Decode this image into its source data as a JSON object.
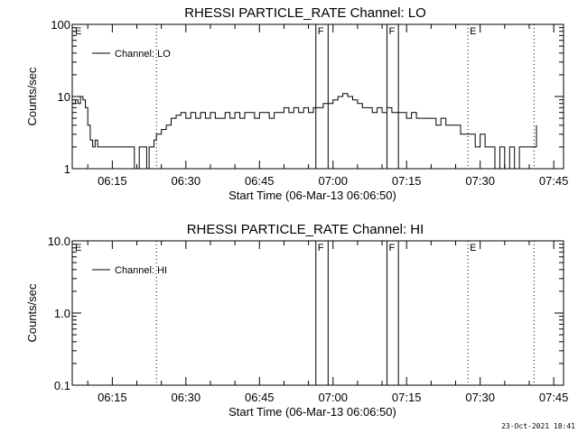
{
  "footer": "23-Oct-2021 18:41",
  "chart_data": [
    {
      "type": "line",
      "title": "RHESSI PARTICLE_RATE Channel: LO",
      "xlabel": "Start Time (06-Mar-13 06:06:50)",
      "ylabel": "Counts/sec",
      "xscale": "time",
      "xlim": [
        "06:06:50",
        "07:47:00"
      ],
      "ylim": [
        1,
        100
      ],
      "yscale": "log",
      "x_ticks": [
        "06:15",
        "06:30",
        "06:45",
        "07:00",
        "07:15",
        "07:30",
        "07:45"
      ],
      "y_ticks": [
        "1",
        "10",
        "100"
      ],
      "legend": {
        "label": "Channel: LO",
        "position": "top-left"
      },
      "markers": [
        {
          "label": "E",
          "time": "06:06:50",
          "style": "dotted"
        },
        {
          "label": "",
          "time": "06:24:00",
          "style": "dotted"
        },
        {
          "label": "F",
          "time": "06:56:30",
          "style": "solid"
        },
        {
          "label": "",
          "time": "06:59:00",
          "style": "solid"
        },
        {
          "label": "F",
          "time": "07:11:00",
          "style": "solid"
        },
        {
          "label": "",
          "time": "07:13:20",
          "style": "solid"
        },
        {
          "label": "E",
          "time": "07:27:30",
          "style": "dotted"
        },
        {
          "label": "",
          "time": "07:49:40",
          "style": "dotted"
        }
      ],
      "series": [
        {
          "name": "Channel: LO",
          "points": [
            [
              "06:06:50",
              8
            ],
            [
              "06:07:30",
              9
            ],
            [
              "06:08:00",
              8
            ],
            [
              "06:08:30",
              10
            ],
            [
              "06:09:00",
              9
            ],
            [
              "06:09:30",
              7
            ],
            [
              "06:10:00",
              4
            ],
            [
              "06:10:30",
              2.5
            ],
            [
              "06:11:00",
              2
            ],
            [
              "06:11:30",
              2.5
            ],
            [
              "06:12:00",
              2
            ],
            [
              "06:13:00",
              2
            ],
            [
              "06:14:00",
              2
            ],
            [
              "06:15:00",
              2
            ],
            [
              "06:16:00",
              2
            ],
            [
              "06:17:00",
              2
            ],
            [
              "06:18:00",
              2
            ],
            [
              "06:19:00",
              2
            ],
            [
              "06:19:30",
              1
            ],
            [
              "06:20:00",
              1
            ],
            [
              "06:20:30",
              2
            ],
            [
              "06:21:00",
              2
            ],
            [
              "06:21:30",
              2
            ],
            [
              "06:22:00",
              1
            ],
            [
              "06:22:30",
              2
            ],
            [
              "06:23:00",
              2
            ],
            [
              "06:23:30",
              2.5
            ],
            [
              "06:24:00",
              3
            ],
            [
              "06:25:00",
              3.5
            ],
            [
              "06:26:00",
              4
            ],
            [
              "06:27:00",
              5
            ],
            [
              "06:28:00",
              5.5
            ],
            [
              "06:29:00",
              6
            ],
            [
              "06:30:00",
              5
            ],
            [
              "06:31:00",
              6
            ],
            [
              "06:32:00",
              5
            ],
            [
              "06:33:00",
              6
            ],
            [
              "06:34:00",
              5
            ],
            [
              "06:35:00",
              6
            ],
            [
              "06:36:00",
              5
            ],
            [
              "06:37:00",
              5
            ],
            [
              "06:38:00",
              6
            ],
            [
              "06:39:00",
              5
            ],
            [
              "06:40:00",
              6
            ],
            [
              "06:41:00",
              5
            ],
            [
              "06:42:00",
              6
            ],
            [
              "06:43:00",
              6
            ],
            [
              "06:44:00",
              5
            ],
            [
              "06:45:00",
              6
            ],
            [
              "06:46:00",
              6
            ],
            [
              "06:47:00",
              5
            ],
            [
              "06:48:00",
              6
            ],
            [
              "06:49:00",
              6
            ],
            [
              "06:50:00",
              7
            ],
            [
              "06:51:00",
              6
            ],
            [
              "06:52:00",
              7
            ],
            [
              "06:53:00",
              6
            ],
            [
              "06:54:00",
              7
            ],
            [
              "06:55:00",
              6
            ],
            [
              "06:56:00",
              7
            ],
            [
              "06:57:00",
              7
            ],
            [
              "06:58:00",
              8
            ],
            [
              "06:59:00",
              8
            ],
            [
              "07:00:00",
              9
            ],
            [
              "07:01:00",
              10
            ],
            [
              "07:02:00",
              11
            ],
            [
              "07:03:00",
              10
            ],
            [
              "07:04:00",
              9
            ],
            [
              "07:05:00",
              8
            ],
            [
              "07:06:00",
              7
            ],
            [
              "07:07:00",
              7
            ],
            [
              "07:08:00",
              6
            ],
            [
              "07:09:00",
              7
            ],
            [
              "07:10:00",
              6
            ],
            [
              "07:11:00",
              7
            ],
            [
              "07:12:00",
              6
            ],
            [
              "07:13:00",
              6
            ],
            [
              "07:14:00",
              6
            ],
            [
              "07:15:00",
              5
            ],
            [
              "07:16:00",
              6
            ],
            [
              "07:17:00",
              5
            ],
            [
              "07:18:00",
              5
            ],
            [
              "07:19:00",
              5
            ],
            [
              "07:20:00",
              5
            ],
            [
              "07:21:00",
              4
            ],
            [
              "07:22:00",
              5
            ],
            [
              "07:23:00",
              4
            ],
            [
              "07:24:00",
              4
            ],
            [
              "07:25:00",
              4
            ],
            [
              "07:26:00",
              3
            ],
            [
              "07:27:00",
              3
            ],
            [
              "07:28:00",
              3
            ],
            [
              "07:29:00",
              2
            ],
            [
              "07:30:00",
              3
            ],
            [
              "07:31:00",
              2
            ],
            [
              "07:32:00",
              2
            ],
            [
              "07:33:00",
              1
            ],
            [
              "07:34:00",
              2
            ],
            [
              "07:35:00",
              1
            ],
            [
              "07:36:00",
              2
            ],
            [
              "07:37:00",
              1
            ],
            [
              "07:38:00",
              2
            ],
            [
              "07:39:00",
              2
            ],
            [
              "07:40:00",
              2
            ],
            [
              "07:41:00",
              2
            ],
            [
              "07:42:00",
              2
            ],
            [
              "07:43:00",
              2
            ],
            [
              "07:44:00",
              2
            ],
            [
              "07:45:00",
              2
            ],
            [
              "07:46:00",
              2
            ],
            [
              "07:47:00",
              3
            ],
            [
              "07:48:00",
              4
            ]
          ]
        }
      ]
    },
    {
      "type": "line",
      "title": "RHESSI PARTICLE_RATE Channel: HI",
      "xlabel": "Start Time (06-Mar-13 06:06:50)",
      "ylabel": "Counts/sec",
      "xscale": "time",
      "xlim": [
        "06:06:50",
        "07:47:00"
      ],
      "ylim": [
        0.1,
        10
      ],
      "yscale": "log",
      "x_ticks": [
        "06:15",
        "06:30",
        "06:45",
        "07:00",
        "07:15",
        "07:30",
        "07:45"
      ],
      "y_ticks": [
        "0.1",
        "1.0",
        "10.0"
      ],
      "legend": {
        "label": "Channel: HI",
        "position": "top-left"
      },
      "markers": [
        {
          "label": "E",
          "time": "06:06:50",
          "style": "dotted"
        },
        {
          "label": "",
          "time": "06:24:00",
          "style": "dotted"
        },
        {
          "label": "F",
          "time": "06:56:30",
          "style": "solid"
        },
        {
          "label": "",
          "time": "06:59:00",
          "style": "solid"
        },
        {
          "label": "F",
          "time": "07:11:00",
          "style": "solid"
        },
        {
          "label": "",
          "time": "07:13:20",
          "style": "solid"
        },
        {
          "label": "E",
          "time": "07:27:30",
          "style": "dotted"
        },
        {
          "label": "",
          "time": "07:49:40",
          "style": "dotted"
        }
      ],
      "series": [
        {
          "name": "Channel: HI",
          "points": []
        }
      ]
    }
  ]
}
